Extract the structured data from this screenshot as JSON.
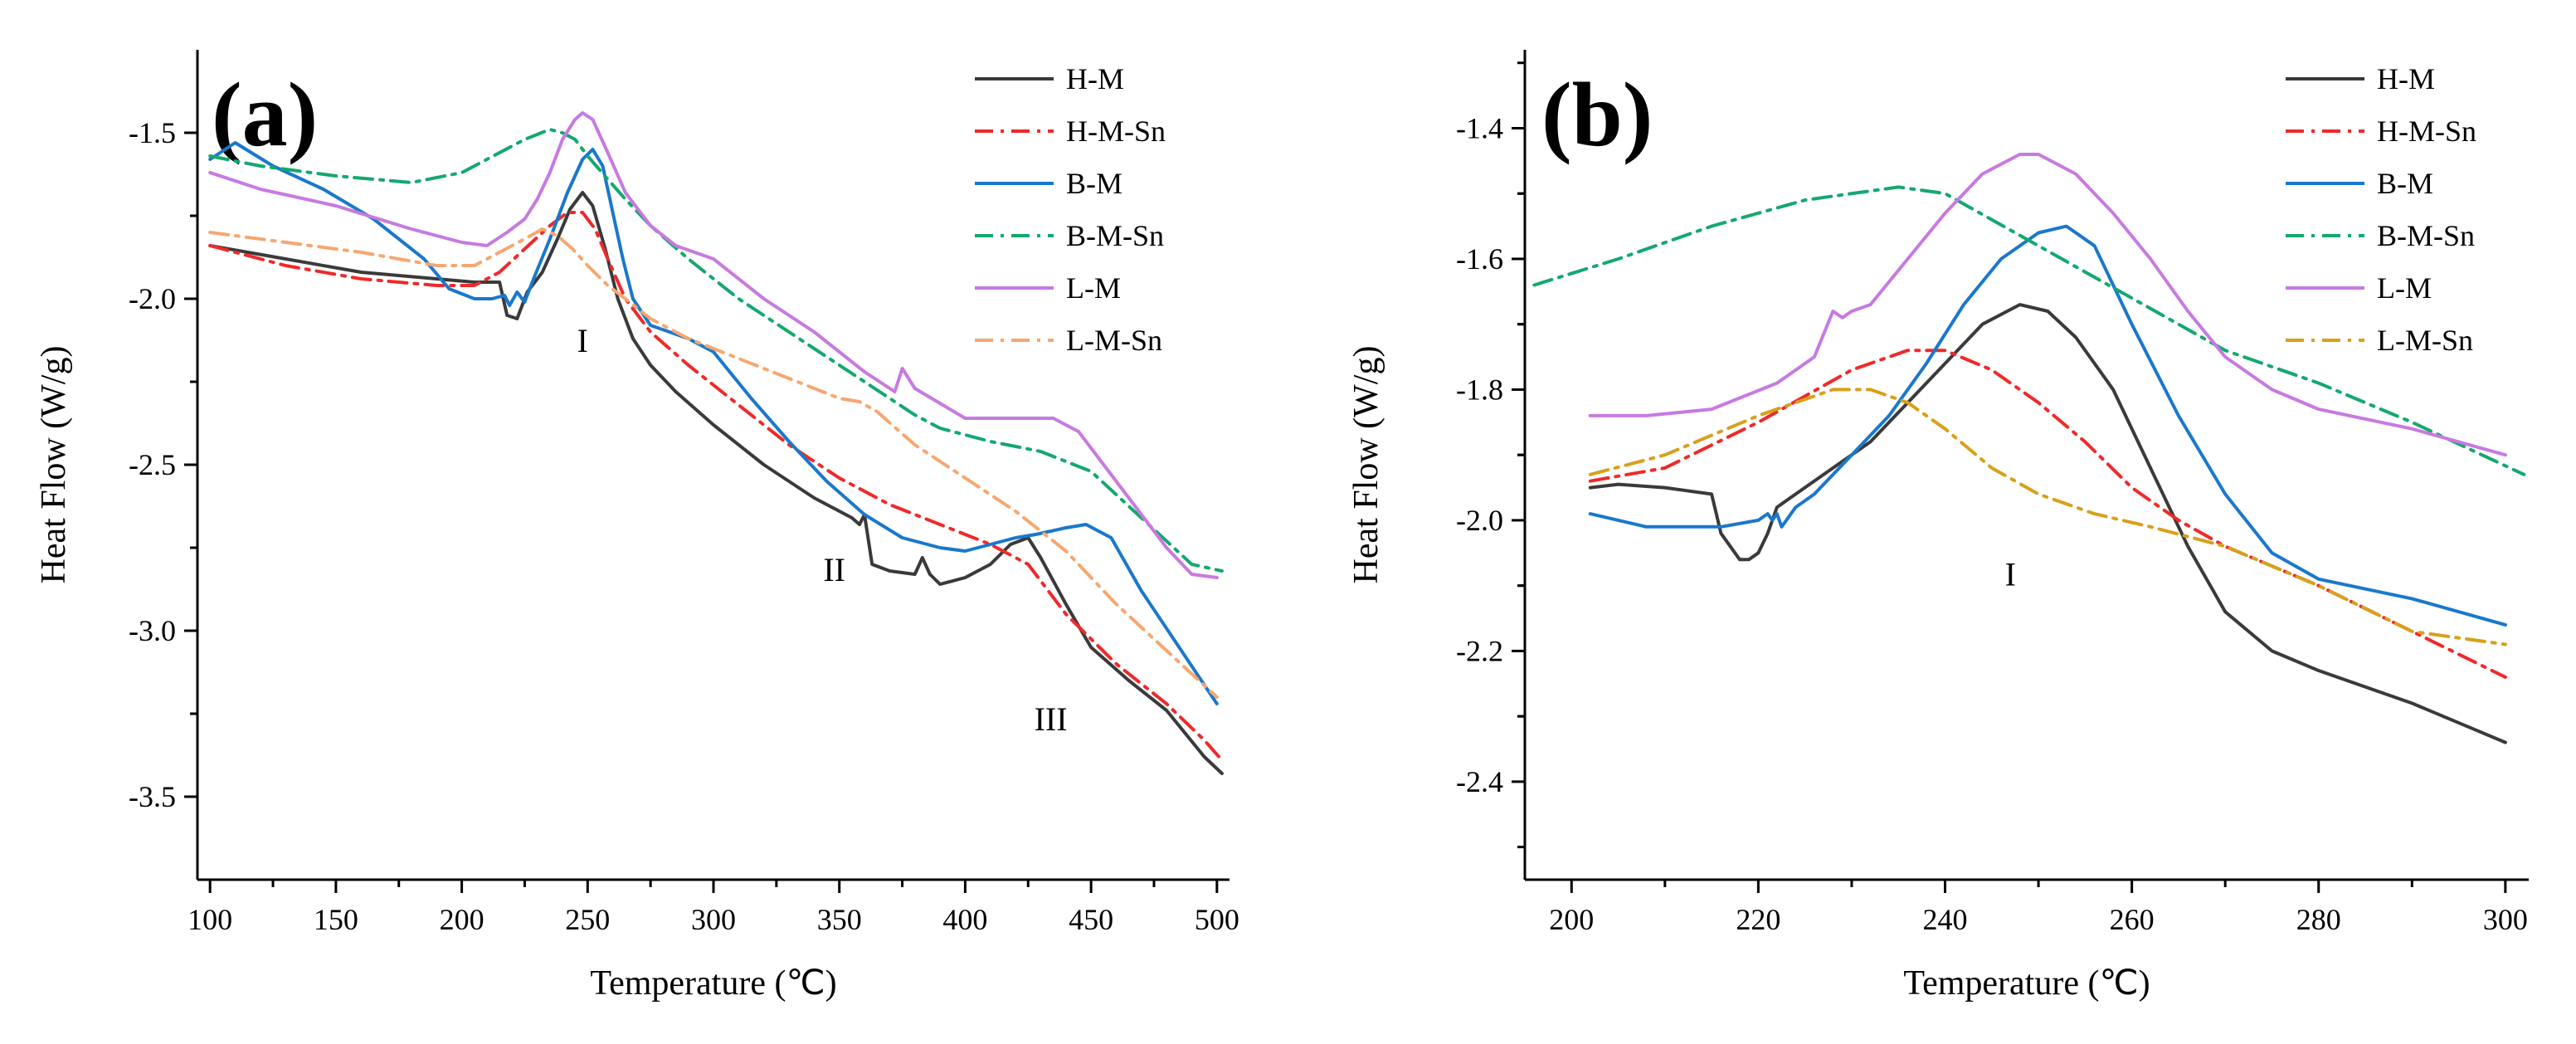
{
  "chart_data": [
    {
      "type": "line",
      "panel_label": "(a)",
      "xlabel": "Temperature (℃)",
      "ylabel": "Heat Flow (W/g)",
      "xlim": [
        95,
        505
      ],
      "ylim": [
        -3.75,
        -1.25
      ],
      "xticks": [
        100,
        150,
        200,
        250,
        300,
        350,
        400,
        450,
        500
      ],
      "yticks": [
        -1.5,
        -2.0,
        -2.5,
        -3.0,
        -3.5
      ],
      "ytick_labels": [
        "-1.5",
        "-2.0",
        "-2.5",
        "-3.0",
        "-3.5"
      ],
      "legend_position": "top-right",
      "annotations": [
        {
          "text": "I",
          "x": 248,
          "y": -2.16
        },
        {
          "text": "II",
          "x": 348,
          "y": -2.85
        },
        {
          "text": "III",
          "x": 434,
          "y": -3.3
        }
      ],
      "series": [
        {
          "name": "H-M",
          "color": "#3a3a3a",
          "dash": "solid",
          "x": [
            100,
            130,
            160,
            190,
            205,
            215,
            218,
            222,
            226,
            232,
            238,
            243,
            248,
            252,
            257,
            262,
            268,
            275,
            285,
            300,
            320,
            340,
            355,
            358,
            360,
            363,
            370,
            380,
            383,
            386,
            390,
            400,
            410,
            418,
            425,
            430,
            440,
            450,
            465,
            480,
            495,
            502
          ],
          "y": [
            -1.84,
            -1.88,
            -1.92,
            -1.94,
            -1.95,
            -1.95,
            -2.05,
            -2.06,
            -1.98,
            -1.92,
            -1.82,
            -1.73,
            -1.68,
            -1.72,
            -1.85,
            -2.0,
            -2.12,
            -2.2,
            -2.28,
            -2.38,
            -2.5,
            -2.6,
            -2.66,
            -2.68,
            -2.65,
            -2.8,
            -2.82,
            -2.83,
            -2.78,
            -2.83,
            -2.86,
            -2.84,
            -2.8,
            -2.74,
            -2.72,
            -2.78,
            -2.92,
            -3.05,
            -3.15,
            -3.24,
            -3.38,
            -3.43
          ]
        },
        {
          "name": "H-M-Sn",
          "color": "#ee2a2a",
          "dash": "dashdot",
          "x": [
            100,
            130,
            160,
            190,
            205,
            215,
            225,
            235,
            242,
            248,
            253,
            258,
            265,
            275,
            290,
            310,
            330,
            350,
            370,
            390,
            410,
            425,
            440,
            460,
            480,
            495,
            502
          ],
          "y": [
            -1.84,
            -1.9,
            -1.94,
            -1.96,
            -1.96,
            -1.92,
            -1.85,
            -1.78,
            -1.74,
            -1.74,
            -1.79,
            -1.88,
            -2.0,
            -2.1,
            -2.2,
            -2.32,
            -2.44,
            -2.54,
            -2.62,
            -2.68,
            -2.74,
            -2.8,
            -2.95,
            -3.1,
            -3.22,
            -3.33,
            -3.39
          ]
        },
        {
          "name": "B-M",
          "color": "#1a78cc",
          "dash": "solid",
          "x": [
            100,
            110,
            125,
            145,
            165,
            185,
            195,
            205,
            212,
            217,
            219,
            222,
            225,
            228,
            235,
            242,
            248,
            252,
            256,
            260,
            264,
            268,
            275,
            290,
            300,
            315,
            330,
            345,
            360,
            375,
            390,
            400,
            410,
            420,
            428,
            440,
            448,
            458,
            470,
            485,
            500
          ],
          "y": [
            -1.58,
            -1.53,
            -1.6,
            -1.67,
            -1.76,
            -1.88,
            -1.97,
            -2.0,
            -2.0,
            -1.99,
            -2.02,
            -1.98,
            -2.01,
            -1.95,
            -1.82,
            -1.68,
            -1.58,
            -1.55,
            -1.6,
            -1.74,
            -1.88,
            -2.0,
            -2.08,
            -2.12,
            -2.16,
            -2.3,
            -2.43,
            -2.55,
            -2.65,
            -2.72,
            -2.75,
            -2.76,
            -2.74,
            -2.72,
            -2.71,
            -2.69,
            -2.68,
            -2.72,
            -2.88,
            -3.05,
            -3.22
          ]
        },
        {
          "name": "B-M-Sn",
          "color": "#14a86f",
          "dash": "dashdot",
          "x": [
            100,
            120,
            150,
            180,
            200,
            215,
            225,
            235,
            240,
            245,
            250,
            258,
            265,
            275,
            290,
            310,
            330,
            350,
            370,
            380,
            390,
            410,
            430,
            450,
            470,
            490,
            502
          ],
          "y": [
            -1.57,
            -1.6,
            -1.63,
            -1.65,
            -1.62,
            -1.56,
            -1.52,
            -1.49,
            -1.5,
            -1.52,
            -1.57,
            -1.64,
            -1.7,
            -1.78,
            -1.88,
            -2.0,
            -2.1,
            -2.2,
            -2.3,
            -2.35,
            -2.39,
            -2.43,
            -2.46,
            -2.52,
            -2.66,
            -2.8,
            -2.82
          ]
        },
        {
          "name": "L-M",
          "color": "#c77ae0",
          "dash": "solid",
          "x": [
            100,
            120,
            150,
            180,
            200,
            210,
            218,
            225,
            230,
            235,
            240,
            245,
            248,
            252,
            258,
            265,
            275,
            285,
            300,
            320,
            340,
            360,
            372,
            375,
            380,
            400,
            420,
            435,
            445,
            455,
            470,
            480,
            490,
            500
          ],
          "y": [
            -1.62,
            -1.67,
            -1.72,
            -1.79,
            -1.83,
            -1.84,
            -1.8,
            -1.76,
            -1.7,
            -1.62,
            -1.52,
            -1.46,
            -1.44,
            -1.46,
            -1.56,
            -1.68,
            -1.78,
            -1.84,
            -1.88,
            -2.0,
            -2.1,
            -2.22,
            -2.28,
            -2.21,
            -2.27,
            -2.36,
            -2.36,
            -2.36,
            -2.4,
            -2.5,
            -2.65,
            -2.75,
            -2.83,
            -2.84
          ]
        },
        {
          "name": "L-M-Sn",
          "color": "#f6a770",
          "dash": "dashdot",
          "x": [
            100,
            130,
            160,
            190,
            205,
            215,
            225,
            232,
            238,
            244,
            250,
            258,
            265,
            275,
            290,
            310,
            330,
            350,
            358,
            365,
            380,
            400,
            420,
            440,
            460,
            480,
            500
          ],
          "y": [
            -1.8,
            -1.83,
            -1.86,
            -1.9,
            -1.9,
            -1.86,
            -1.82,
            -1.79,
            -1.81,
            -1.85,
            -1.9,
            -1.96,
            -2.0,
            -2.06,
            -2.12,
            -2.18,
            -2.24,
            -2.3,
            -2.31,
            -2.34,
            -2.44,
            -2.54,
            -2.64,
            -2.76,
            -2.92,
            -3.06,
            -3.2
          ]
        }
      ]
    },
    {
      "type": "line",
      "panel_label": "(b)",
      "xlabel": "Temperature (℃)",
      "ylabel": "Heat Flow (W/g)",
      "xlim": [
        195,
        302.5
      ],
      "ylim": [
        -2.55,
        -1.28
      ],
      "xticks": [
        200,
        220,
        240,
        260,
        280,
        300
      ],
      "yticks": [
        -1.4,
        -1.6,
        -1.8,
        -2.0,
        -2.2,
        -2.4
      ],
      "ytick_labels": [
        "-1.4",
        "-1.6",
        "-1.8",
        "-2.0",
        "-2.2",
        "-2.4"
      ],
      "legend_position": "top-right",
      "annotations": [
        {
          "text": "I",
          "x": 247,
          "y": -2.1
        }
      ],
      "series": [
        {
          "name": "H-M",
          "color": "#3a3a3a",
          "dash": "solid",
          "x": [
            202,
            205,
            210,
            215,
            216,
            218,
            219,
            220,
            221,
            222,
            224,
            228,
            232,
            236,
            240,
            244,
            248,
            251,
            254,
            258,
            262,
            266,
            270,
            275,
            280,
            290,
            300
          ],
          "y": [
            -1.95,
            -1.945,
            -1.95,
            -1.96,
            -2.02,
            -2.06,
            -2.06,
            -2.05,
            -2.02,
            -1.98,
            -1.96,
            -1.92,
            -1.88,
            -1.82,
            -1.76,
            -1.7,
            -1.67,
            -1.68,
            -1.72,
            -1.8,
            -1.92,
            -2.04,
            -2.14,
            -2.2,
            -2.23,
            -2.28,
            -2.34
          ]
        },
        {
          "name": "H-M-Sn",
          "color": "#ee2a2a",
          "dash": "dashdot",
          "x": [
            202,
            210,
            220,
            230,
            236,
            240,
            245,
            250,
            255,
            260,
            265,
            270,
            280,
            290,
            300
          ],
          "y": [
            -1.94,
            -1.92,
            -1.85,
            -1.77,
            -1.74,
            -1.74,
            -1.77,
            -1.82,
            -1.88,
            -1.95,
            -2.0,
            -2.04,
            -2.1,
            -2.17,
            -2.24
          ]
        },
        {
          "name": "B-M",
          "color": "#1a78cc",
          "dash": "solid",
          "x": [
            202,
            205,
            208,
            212,
            216,
            220,
            221,
            221.5,
            222,
            222.5,
            223,
            224,
            226,
            230,
            234,
            238,
            242,
            246,
            250,
            253,
            256,
            260,
            265,
            270,
            275,
            280,
            290,
            300
          ],
          "y": [
            -1.99,
            -2.0,
            -2.01,
            -2.01,
            -2.01,
            -2.0,
            -1.99,
            -2.0,
            -1.99,
            -2.01,
            -2.0,
            -1.98,
            -1.96,
            -1.9,
            -1.84,
            -1.76,
            -1.67,
            -1.6,
            -1.56,
            -1.55,
            -1.58,
            -1.7,
            -1.84,
            -1.96,
            -2.05,
            -2.09,
            -2.12,
            -2.16
          ]
        },
        {
          "name": "B-M-Sn",
          "color": "#14a86f",
          "dash": "dashdot",
          "x": [
            196,
            205,
            215,
            225,
            235,
            240,
            245,
            250,
            255,
            260,
            265,
            270,
            280,
            290,
            302
          ],
          "y": [
            -1.64,
            -1.6,
            -1.55,
            -1.51,
            -1.49,
            -1.5,
            -1.54,
            -1.58,
            -1.62,
            -1.66,
            -1.7,
            -1.74,
            -1.79,
            -1.85,
            -1.93
          ]
        },
        {
          "name": "L-M",
          "color": "#c77ae0",
          "dash": "solid",
          "x": [
            202,
            208,
            215,
            222,
            226,
            228,
            229,
            230,
            232,
            236,
            240,
            244,
            248,
            250,
            254,
            258,
            262,
            266,
            270,
            275,
            280,
            290,
            300
          ],
          "y": [
            -1.84,
            -1.84,
            -1.83,
            -1.79,
            -1.75,
            -1.68,
            -1.69,
            -1.68,
            -1.67,
            -1.6,
            -1.53,
            -1.47,
            -1.44,
            -1.44,
            -1.47,
            -1.53,
            -1.6,
            -1.68,
            -1.75,
            -1.8,
            -1.83,
            -1.86,
            -1.9
          ]
        },
        {
          "name": "L-M-Sn",
          "color": "#d8a01a",
          "dash": "dashdot",
          "x": [
            202,
            210,
            220,
            228,
            232,
            236,
            240,
            245,
            250,
            256,
            262,
            270,
            280,
            290,
            300
          ],
          "y": [
            -1.93,
            -1.9,
            -1.84,
            -1.8,
            -1.8,
            -1.82,
            -1.86,
            -1.92,
            -1.96,
            -1.99,
            -2.01,
            -2.04,
            -2.1,
            -2.17,
            -2.19
          ]
        }
      ]
    }
  ]
}
